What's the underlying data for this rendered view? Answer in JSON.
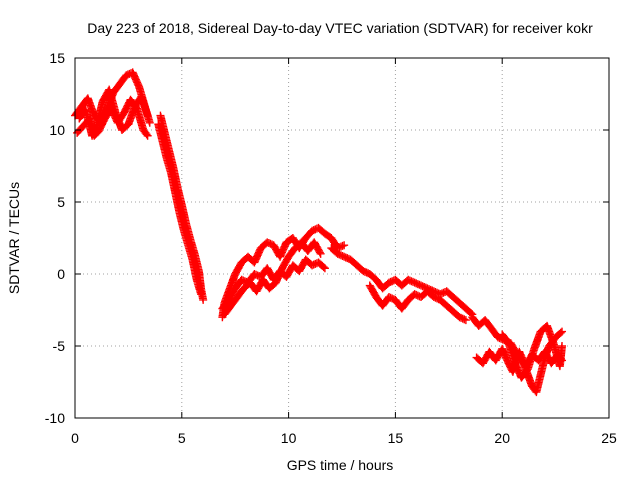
{
  "chart_data": {
    "type": "scatter",
    "title": "Day 223 of 2018, Sidereal Day-to-day VTEC variation (SDTVAR) for receiver kokr",
    "xlabel": "GPS time / hours",
    "ylabel": "SDTVAR / TECUs",
    "xlim": [
      0,
      25
    ],
    "ylim": [
      -10,
      15
    ],
    "xticks": [
      0,
      5,
      10,
      15,
      20,
      25
    ],
    "yticks": [
      -10,
      -5,
      0,
      5,
      10,
      15
    ],
    "grid": true,
    "marker": "plus",
    "color": "#ff0000",
    "series": [
      {
        "name": "SDTVAR",
        "tracks": [
          [
            [
              0.0,
              11.0
            ],
            [
              0.3,
              11.6
            ],
            [
              0.6,
              12.2
            ],
            [
              0.9,
              11.0
            ],
            [
              1.2,
              10.5
            ],
            [
              1.5,
              11.5
            ],
            [
              1.8,
              12.6
            ],
            [
              2.1,
              13.2
            ],
            [
              2.4,
              13.8
            ],
            [
              2.7,
              14.0
            ],
            [
              3.0,
              13.0
            ],
            [
              3.3,
              11.5
            ],
            [
              3.5,
              10.5
            ]
          ],
          [
            [
              0.1,
              9.8
            ],
            [
              0.4,
              10.3
            ],
            [
              0.7,
              10.8
            ],
            [
              0.9,
              9.6
            ],
            [
              1.1,
              9.9
            ],
            [
              1.4,
              10.8
            ],
            [
              1.7,
              11.5
            ],
            [
              2.0,
              10.5
            ],
            [
              2.3,
              11.2
            ],
            [
              2.6,
              12.1
            ],
            [
              2.9,
              11.5
            ],
            [
              3.2,
              10.0
            ],
            [
              3.4,
              9.6
            ]
          ],
          [
            [
              0.2,
              10.8
            ],
            [
              0.5,
              11.4
            ],
            [
              0.8,
              9.6
            ],
            [
              1.0,
              10.2
            ],
            [
              1.3,
              12.0
            ],
            [
              1.6,
              12.8
            ],
            [
              1.9,
              11.2
            ],
            [
              2.2,
              10.0
            ],
            [
              2.5,
              10.4
            ],
            [
              2.8,
              11.6
            ],
            [
              3.1,
              12.3
            ],
            [
              3.4,
              11.0
            ]
          ],
          [
            [
              4.0,
              11.0
            ],
            [
              4.2,
              9.8
            ],
            [
              4.4,
              8.6
            ],
            [
              4.6,
              7.4
            ],
            [
              4.8,
              6.0
            ],
            [
              5.0,
              4.8
            ],
            [
              5.2,
              3.5
            ],
            [
              5.4,
              2.4
            ],
            [
              5.6,
              1.4
            ],
            [
              5.8,
              0.2
            ],
            [
              5.9,
              -1.0
            ],
            [
              6.0,
              -1.8
            ]
          ],
          [
            [
              3.9,
              10.4
            ],
            [
              4.1,
              9.2
            ],
            [
              4.3,
              8.0
            ],
            [
              4.5,
              7.0
            ],
            [
              4.7,
              5.6
            ],
            [
              4.9,
              4.2
            ],
            [
              5.1,
              3.0
            ],
            [
              5.3,
              2.0
            ],
            [
              5.5,
              1.0
            ],
            [
              5.7,
              -0.4
            ],
            [
              5.9,
              -1.4
            ]
          ],
          [
            [
              6.9,
              -3.0
            ],
            [
              7.0,
              -2.0
            ],
            [
              7.2,
              -1.2
            ],
            [
              7.5,
              0.0
            ],
            [
              7.8,
              0.8
            ],
            [
              8.1,
              1.2
            ],
            [
              8.4,
              0.8
            ],
            [
              8.7,
              1.8
            ],
            [
              9.0,
              2.2
            ],
            [
              9.3,
              2.0
            ],
            [
              9.6,
              1.2
            ],
            [
              9.9,
              2.2
            ],
            [
              10.2,
              2.5
            ],
            [
              10.5,
              1.8
            ],
            [
              10.8,
              2.5
            ],
            [
              11.1,
              3.0
            ],
            [
              11.4,
              3.2
            ],
            [
              11.7,
              2.8
            ],
            [
              12.0,
              2.5
            ],
            [
              12.3,
              1.8
            ],
            [
              12.6,
              2.0
            ]
          ],
          [
            [
              6.9,
              -2.4
            ],
            [
              7.2,
              -1.8
            ],
            [
              7.5,
              -1.0
            ],
            [
              7.8,
              -0.4
            ],
            [
              8.1,
              -0.6
            ],
            [
              8.4,
              0.0
            ],
            [
              8.7,
              -0.2
            ],
            [
              9.0,
              0.4
            ],
            [
              9.3,
              -0.4
            ],
            [
              9.6,
              0.2
            ],
            [
              9.9,
              -0.2
            ],
            [
              10.2,
              0.6
            ],
            [
              10.5,
              0.2
            ],
            [
              10.8,
              1.0
            ],
            [
              11.1,
              0.6
            ],
            [
              11.4,
              0.8
            ],
            [
              11.7,
              0.4
            ]
          ],
          [
            [
              7.0,
              -2.8
            ],
            [
              7.3,
              -2.2
            ],
            [
              7.6,
              -1.6
            ],
            [
              7.9,
              -1.0
            ],
            [
              8.2,
              -0.6
            ],
            [
              8.5,
              -1.2
            ],
            [
              8.8,
              -0.4
            ],
            [
              9.1,
              -1.0
            ],
            [
              9.4,
              -0.6
            ],
            [
              9.7,
              0.4
            ],
            [
              10.0,
              1.2
            ],
            [
              10.3,
              1.8
            ],
            [
              10.6,
              2.2
            ],
            [
              10.9,
              1.6
            ],
            [
              11.2,
              2.2
            ],
            [
              11.5,
              1.4
            ]
          ],
          [
            [
              12.0,
              1.8
            ],
            [
              12.3,
              1.4
            ],
            [
              12.6,
              1.2
            ],
            [
              12.9,
              1.0
            ],
            [
              13.2,
              0.6
            ],
            [
              13.5,
              0.2
            ],
            [
              13.8,
              0.0
            ],
            [
              14.1,
              -0.4
            ],
            [
              14.4,
              -1.0
            ],
            [
              14.7,
              -0.6
            ],
            [
              15.0,
              -0.4
            ],
            [
              15.3,
              -0.8
            ],
            [
              15.6,
              -0.4
            ],
            [
              15.9,
              -0.6
            ],
            [
              16.2,
              -0.8
            ],
            [
              16.5,
              -1.0
            ],
            [
              16.8,
              -1.2
            ],
            [
              17.1,
              -1.4
            ],
            [
              17.4,
              -1.2
            ],
            [
              17.7,
              -1.6
            ],
            [
              18.0,
              -2.0
            ],
            [
              18.3,
              -2.4
            ],
            [
              18.6,
              -2.8
            ]
          ],
          [
            [
              13.8,
              -0.8
            ],
            [
              14.1,
              -1.6
            ],
            [
              14.4,
              -2.2
            ],
            [
              14.7,
              -1.6
            ],
            [
              15.0,
              -1.8
            ],
            [
              15.3,
              -2.4
            ],
            [
              15.6,
              -1.8
            ],
            [
              15.9,
              -1.4
            ],
            [
              16.2,
              -1.6
            ],
            [
              16.5,
              -1.2
            ],
            [
              16.8,
              -1.6
            ],
            [
              17.1,
              -1.8
            ],
            [
              17.4,
              -2.2
            ],
            [
              17.7,
              -2.6
            ],
            [
              18.0,
              -3.0
            ],
            [
              18.3,
              -3.2
            ]
          ],
          [
            [
              18.6,
              -3.0
            ],
            [
              18.9,
              -3.6
            ],
            [
              19.2,
              -3.2
            ],
            [
              19.5,
              -3.8
            ],
            [
              19.8,
              -4.4
            ],
            [
              20.1,
              -4.6
            ],
            [
              20.4,
              -4.8
            ],
            [
              20.7,
              -5.6
            ],
            [
              21.0,
              -6.2
            ],
            [
              21.2,
              -7.0
            ],
            [
              21.4,
              -7.8
            ],
            [
              21.6,
              -8.2
            ],
            [
              21.8,
              -7.0
            ],
            [
              22.0,
              -5.8
            ],
            [
              22.2,
              -5.0
            ],
            [
              22.5,
              -4.4
            ],
            [
              22.8,
              -4.0
            ]
          ],
          [
            [
              18.8,
              -5.8
            ],
            [
              19.1,
              -6.2
            ],
            [
              19.4,
              -5.4
            ],
            [
              19.7,
              -6.0
            ],
            [
              20.0,
              -5.2
            ],
            [
              20.3,
              -6.2
            ],
            [
              20.5,
              -6.8
            ],
            [
              20.8,
              -5.4
            ],
            [
              21.1,
              -6.4
            ],
            [
              21.4,
              -5.6
            ],
            [
              21.7,
              -6.0
            ],
            [
              22.0,
              -5.4
            ],
            [
              22.3,
              -6.2
            ],
            [
              22.6,
              -5.6
            ],
            [
              22.8,
              -6.0
            ]
          ],
          [
            [
              20.0,
              -4.2
            ],
            [
              20.3,
              -4.8
            ],
            [
              20.6,
              -6.2
            ],
            [
              20.9,
              -7.2
            ],
            [
              21.2,
              -6.6
            ],
            [
              21.5,
              -5.2
            ],
            [
              21.8,
              -4.0
            ],
            [
              22.1,
              -3.6
            ],
            [
              22.4,
              -4.8
            ],
            [
              22.7,
              -6.4
            ],
            [
              22.8,
              -5.0
            ]
          ]
        ]
      }
    ]
  }
}
